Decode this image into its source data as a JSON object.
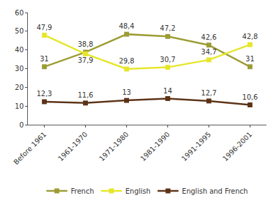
{
  "chart_data": {
    "type": "line",
    "categories": [
      "Before 1961",
      "1961-1970",
      "1971-1980",
      "1981-1990",
      "1991-1995",
      "1996-2001"
    ],
    "series": [
      {
        "name": "French",
        "color": "#9c9c34",
        "marker": "square",
        "values": [
          31,
          38.8,
          48.4,
          47.2,
          42.6,
          31
        ],
        "value_labels": [
          "31",
          "38,8",
          "48,4",
          "47,2",
          "42,6",
          "31"
        ]
      },
      {
        "name": "English",
        "color": "#e6e62a",
        "marker": "square",
        "values": [
          47.9,
          37.9,
          29.8,
          30.7,
          34.7,
          42.8
        ],
        "value_labels": [
          "47,9",
          "37,9",
          "29,8",
          "30,7",
          "34,7",
          "42,8"
        ]
      },
      {
        "name": "English and French",
        "color": "#5c3317",
        "marker": "square",
        "values": [
          12.3,
          11.6,
          13,
          14,
          12.7,
          10.6
        ],
        "value_labels": [
          "12,3",
          "11,6",
          "13",
          "14",
          "12,7",
          "10,6"
        ]
      }
    ],
    "ylim": [
      0,
      60
    ],
    "yticks": [
      0,
      10,
      20,
      30,
      40,
      50,
      60
    ],
    "grid": false,
    "legend": "bottom",
    "data_labels": true
  }
}
